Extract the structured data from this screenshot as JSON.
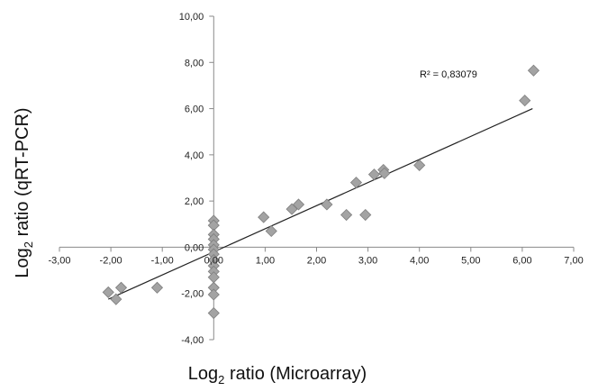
{
  "chart_data": {
    "type": "scatter",
    "xlabel": {
      "prefix": "Log",
      "sub": "2",
      "suffix": " ratio (Microarray)"
    },
    "ylabel": {
      "prefix": "Log",
      "sub": "2",
      "suffix": " ratio (qRT-PCR)"
    },
    "xlim": [
      -3,
      7
    ],
    "ylim": [
      -4,
      10
    ],
    "x_ticks": [
      -3,
      -2,
      -1,
      0,
      1,
      2,
      3,
      4,
      5,
      6,
      7
    ],
    "x_tick_labels": [
      "-3,00",
      "-2,00",
      "-1,00",
      "0,00",
      "1,00",
      "2,00",
      "3,00",
      "4,00",
      "5,00",
      "6,00",
      "7,00"
    ],
    "y_ticks": [
      -4,
      -2,
      0,
      2,
      4,
      6,
      8,
      10
    ],
    "y_tick_labels": [
      "-4,00",
      "-2,00",
      "0,00",
      "2,00",
      "4,00",
      "6,00",
      "8,00",
      "10,00"
    ],
    "grid": false,
    "legend": "none",
    "marker": "diamond",
    "marker_color": "#a3a3a3",
    "line_color": "#222222",
    "annotation": "R² = 0,83079",
    "trendline": {
      "slope": 1.0,
      "intercept": -0.2
    },
    "points": [
      {
        "x": -2.05,
        "y": -1.95
      },
      {
        "x": -1.9,
        "y": -2.25
      },
      {
        "x": -1.8,
        "y": -1.75
      },
      {
        "x": -1.1,
        "y": -1.75
      },
      {
        "x": 0.0,
        "y": 1.15
      },
      {
        "x": 0.0,
        "y": 0.95
      },
      {
        "x": 0.0,
        "y": 0.55
      },
      {
        "x": 0.0,
        "y": 0.35
      },
      {
        "x": 0.0,
        "y": 0.1
      },
      {
        "x": 0.0,
        "y": -0.1
      },
      {
        "x": 0.0,
        "y": -0.3
      },
      {
        "x": 0.0,
        "y": -0.55
      },
      {
        "x": 0.0,
        "y": -0.8
      },
      {
        "x": 0.0,
        "y": -1.05
      },
      {
        "x": 0.0,
        "y": -1.3
      },
      {
        "x": 0.0,
        "y": -1.75
      },
      {
        "x": 0.0,
        "y": -2.05
      },
      {
        "x": 0.0,
        "y": -2.85
      },
      {
        "x": 0.97,
        "y": 1.3
      },
      {
        "x": 1.12,
        "y": 0.7
      },
      {
        "x": 1.52,
        "y": 1.65
      },
      {
        "x": 1.65,
        "y": 1.85
      },
      {
        "x": 2.2,
        "y": 1.85
      },
      {
        "x": 2.58,
        "y": 1.4
      },
      {
        "x": 2.77,
        "y": 2.8
      },
      {
        "x": 2.95,
        "y": 1.4
      },
      {
        "x": 3.12,
        "y": 3.15
      },
      {
        "x": 3.3,
        "y": 3.35
      },
      {
        "x": 3.32,
        "y": 3.2
      },
      {
        "x": 4.0,
        "y": 3.55
      },
      {
        "x": 6.05,
        "y": 6.35
      },
      {
        "x": 6.22,
        "y": 7.65
      }
    ]
  }
}
